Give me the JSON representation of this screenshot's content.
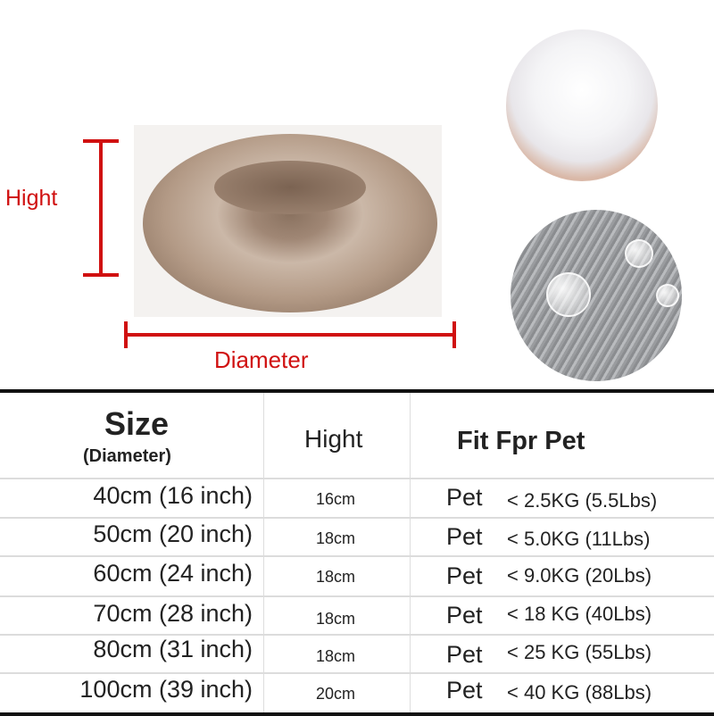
{
  "diagram": {
    "height_label": "Hight",
    "diameter_label": "Diameter",
    "accent_color": "#d01010"
  },
  "images": {
    "bed": "round-fluffy-pet-bed",
    "filling": "cotton-filling-in-hands",
    "fur": "gray-plush-fur-closeup"
  },
  "table": {
    "headers": {
      "size": "Size",
      "size_sub": "(Diameter)",
      "height": "Hight",
      "fit": "Fit Fpr Pet"
    },
    "rows": [
      {
        "size": "40cm (16 inch)",
        "height": "16cm",
        "pet": "Pet",
        "weight": "< 2.5KG (5.5Lbs)"
      },
      {
        "size": "50cm (20 inch)",
        "height": "18cm",
        "pet": "Pet",
        "weight": "< 5.0KG (11Lbs)"
      },
      {
        "size": "60cm (24 inch)",
        "height": "18cm",
        "pet": "Pet",
        "weight": "< 9.0KG (20Lbs)"
      },
      {
        "size": "70cm (28 inch)",
        "height": "18cm",
        "pet": "Pet",
        "weight": "< 18 KG (40Lbs)"
      },
      {
        "size": "80cm (31 inch)",
        "height": "18cm",
        "pet": "Pet",
        "weight": "< 25 KG (55Lbs)"
      },
      {
        "size": "100cm (39 inch)",
        "height": "20cm",
        "pet": "Pet",
        "weight": "< 40 KG (88Lbs)"
      }
    ]
  }
}
